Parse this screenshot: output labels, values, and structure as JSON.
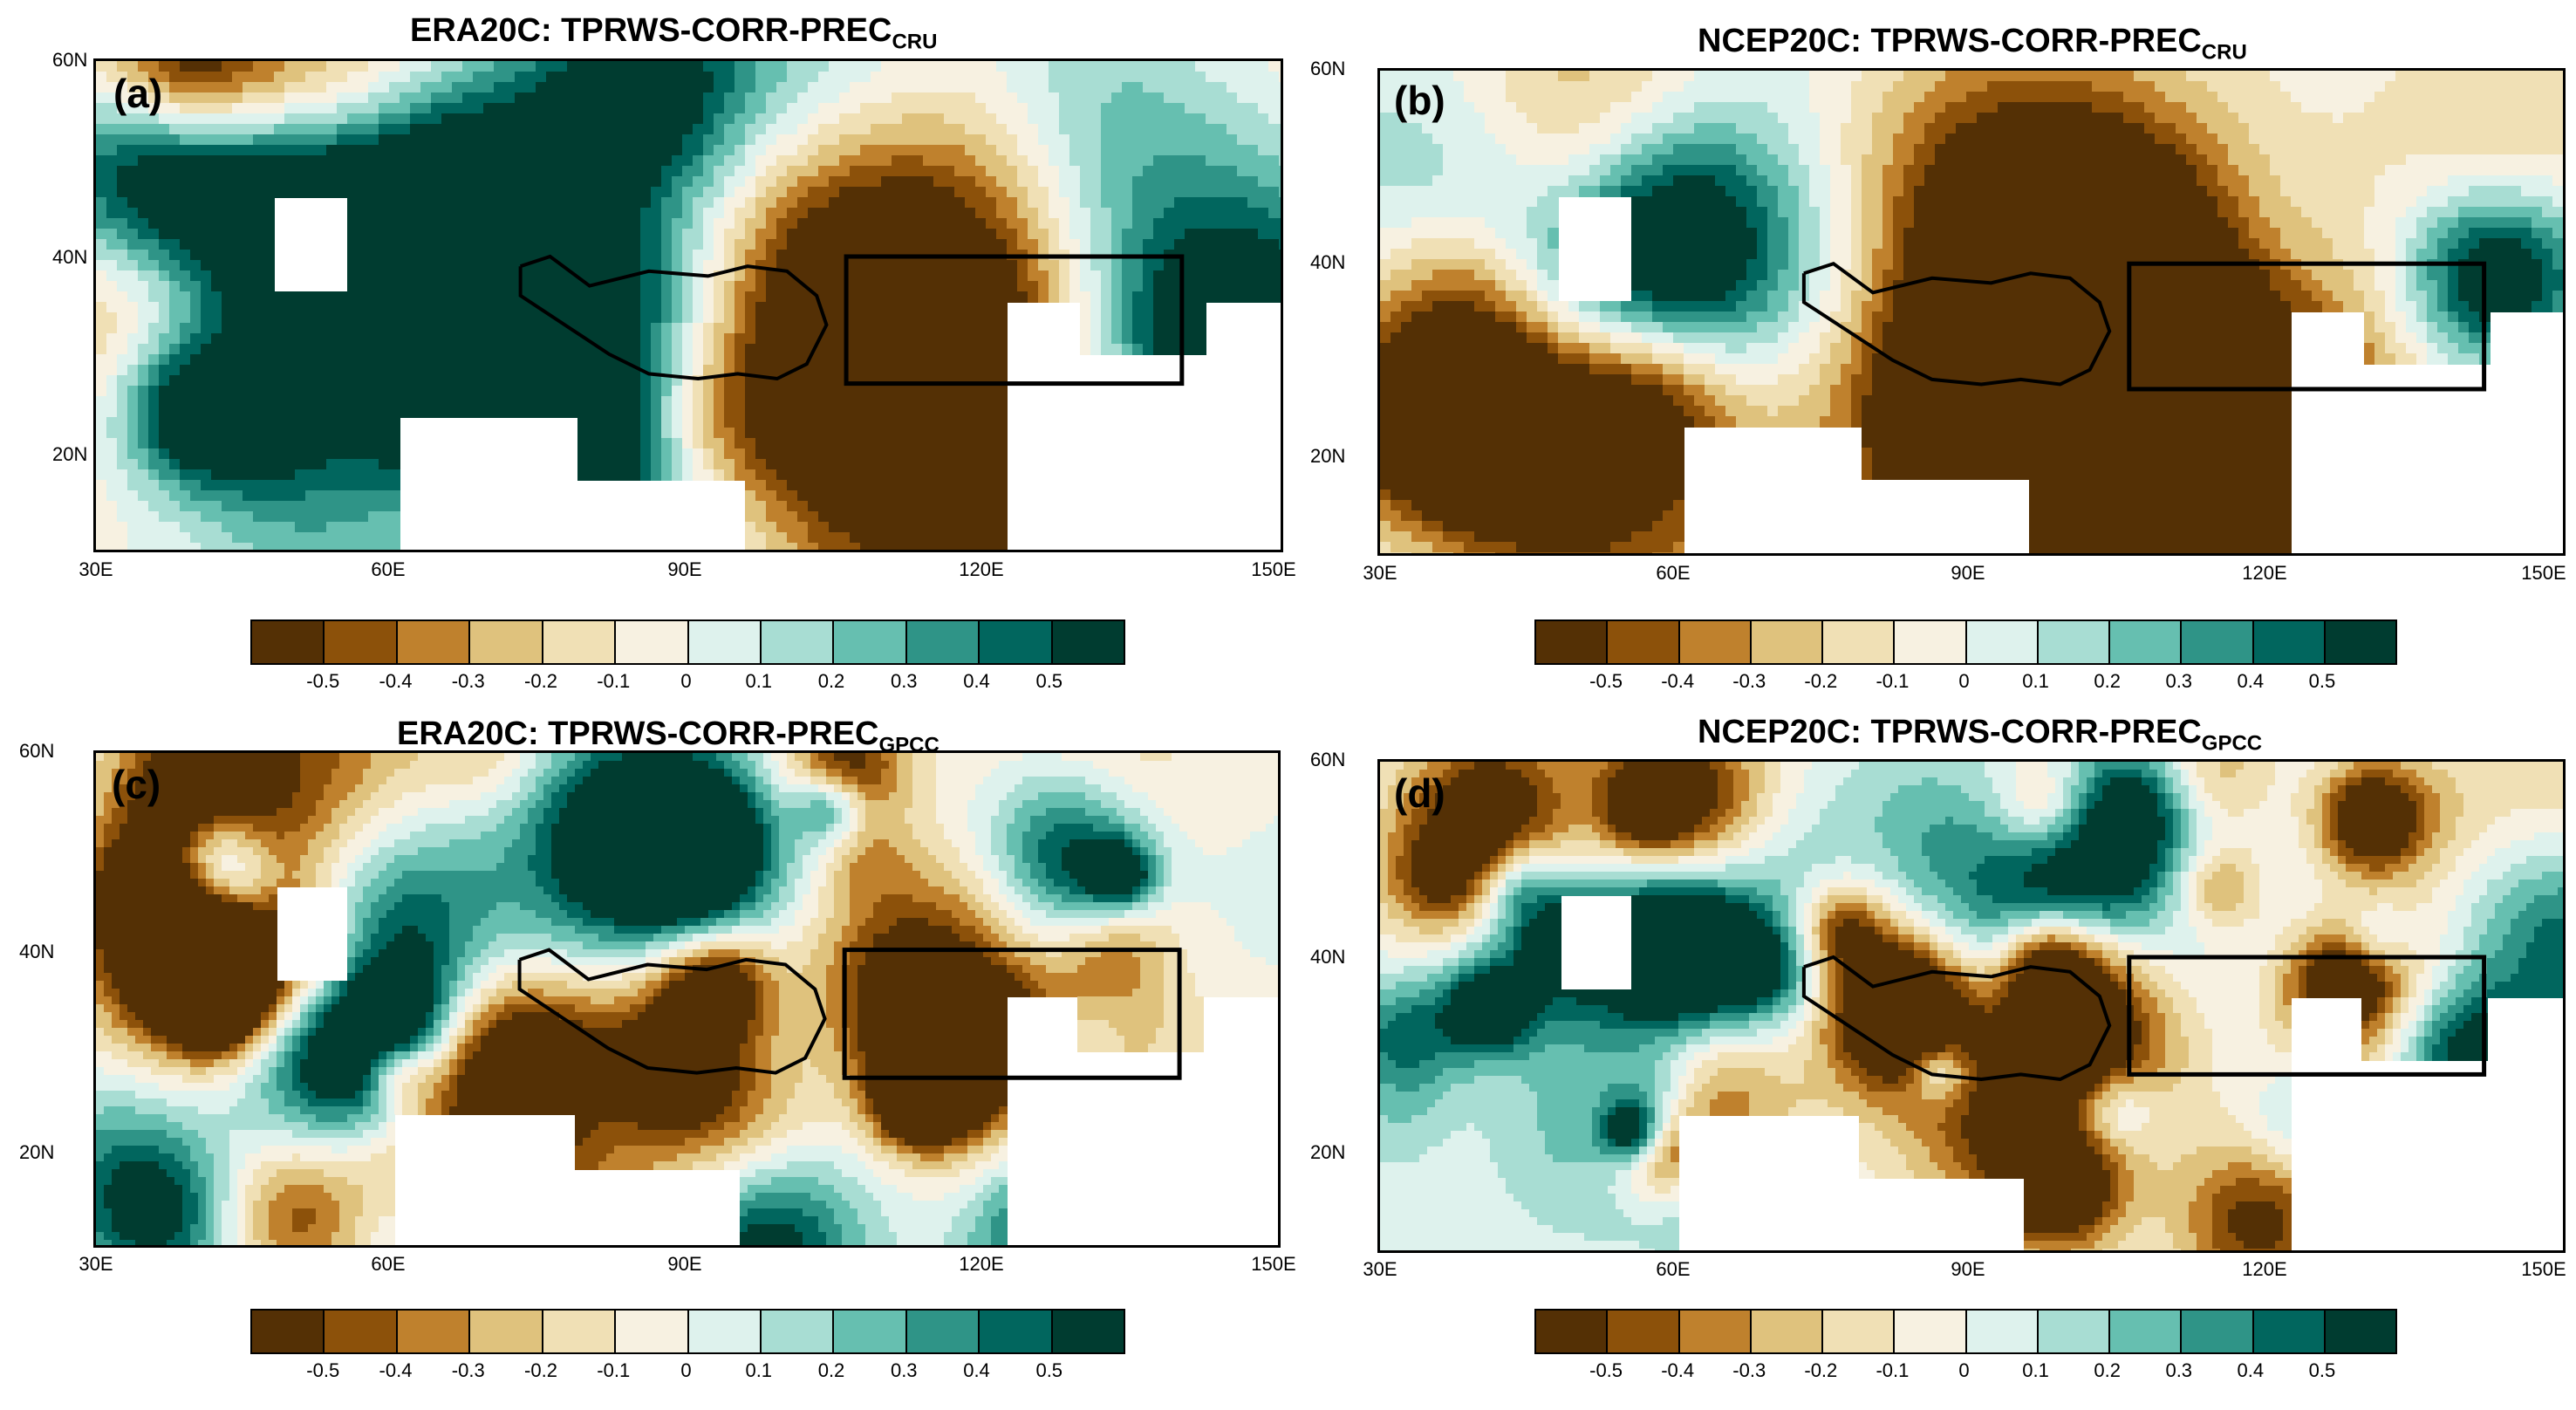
{
  "chart_data": [
    {
      "type": "heatmap",
      "panel_label": "(a)",
      "title_main": "ERA20C: TPRWS-CORR-PREC",
      "title_sub": "CRU",
      "lat_ticks": [
        "60N",
        "40N",
        "20N"
      ],
      "lon_ticks": [
        "30E",
        "60E",
        "90E",
        "120E",
        "150E"
      ],
      "lon_range": [
        30,
        150
      ],
      "lat_range": [
        10,
        60
      ],
      "region_box": {
        "lon": [
          106,
          140
        ],
        "lat": [
          27,
          40
        ]
      },
      "colorbar_labels": [
        "-0.5",
        "-0.4",
        "-0.3",
        "-0.2",
        "-0.1",
        "0",
        "0.1",
        "0.2",
        "0.3",
        "0.4",
        "0.5"
      ],
      "seed": 11
    },
    {
      "type": "heatmap",
      "panel_label": "(b)",
      "title_main": "NCEP20C: TPRWS-CORR-PREC",
      "title_sub": "CRU",
      "lat_ticks": [
        "60N",
        "40N",
        "20N"
      ],
      "lon_ticks": [
        "30E",
        "60E",
        "90E",
        "120E",
        "150E"
      ],
      "lon_range": [
        30,
        150
      ],
      "lat_range": [
        10,
        60
      ],
      "region_box": {
        "lon": [
          106,
          142
        ],
        "lat": [
          27,
          40
        ]
      },
      "colorbar_labels": [
        "-0.5",
        "-0.4",
        "-0.3",
        "-0.2",
        "-0.1",
        "0",
        "0.1",
        "0.2",
        "0.3",
        "0.4",
        "0.5"
      ],
      "seed": 23
    },
    {
      "type": "heatmap",
      "panel_label": "(c)",
      "title_main": "ERA20C: TPRWS-CORR-PREC",
      "title_sub": "GPCC",
      "lat_ticks": [
        "60N",
        "40N",
        "20N"
      ],
      "lon_ticks": [
        "30E",
        "60E",
        "90E",
        "120E",
        "150E"
      ],
      "lon_range": [
        30,
        150
      ],
      "lat_range": [
        10,
        60
      ],
      "region_box": {
        "lon": [
          106,
          140
        ],
        "lat": [
          27,
          40
        ]
      },
      "colorbar_labels": [
        "-0.5",
        "-0.4",
        "-0.3",
        "-0.2",
        "-0.1",
        "0",
        "0.1",
        "0.2",
        "0.3",
        "0.4",
        "0.5"
      ],
      "seed": 37
    },
    {
      "type": "heatmap",
      "panel_label": "(d)",
      "title_main": "NCEP20C: TPRWS-CORR-PREC",
      "title_sub": "GPCC",
      "lat_ticks": [
        "60N",
        "40N",
        "20N"
      ],
      "lon_ticks": [
        "30E",
        "60E",
        "90E",
        "120E",
        "150E"
      ],
      "lon_range": [
        30,
        150
      ],
      "lat_range": [
        10,
        60
      ],
      "region_box": {
        "lon": [
          106,
          142
        ],
        "lat": [
          28,
          40
        ]
      },
      "colorbar_labels": [
        "-0.5",
        "-0.4",
        "-0.3",
        "-0.2",
        "-0.1",
        "0",
        "0.1",
        "0.2",
        "0.3",
        "0.4",
        "0.5"
      ],
      "seed": 53
    }
  ],
  "colorbar_colors": [
    "#543005",
    "#8c510a",
    "#bf812d",
    "#dfc27d",
    "#f0e0b5",
    "#f7f1e1",
    "#def2ed",
    "#a8ddd3",
    "#66bfb0",
    "#2f9487",
    "#01665e",
    "#003c30"
  ]
}
